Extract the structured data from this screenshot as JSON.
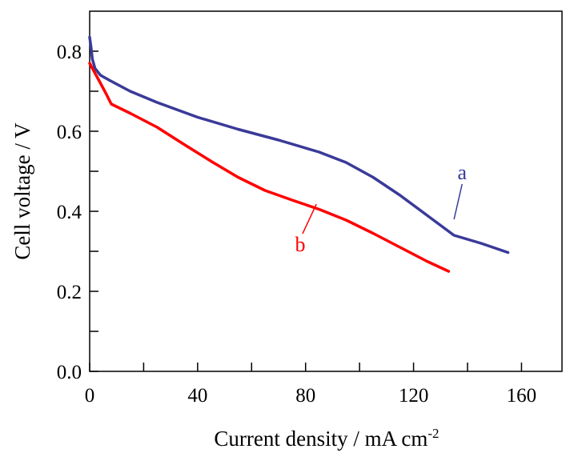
{
  "chart_data": {
    "type": "line",
    "title": "",
    "xlabel": "Current density / mA cm",
    "xlabel_superscript": "-2",
    "ylabel": "Cell voltage / V",
    "xlim": [
      0,
      175
    ],
    "ylim": [
      0,
      0.9
    ],
    "x_ticks": [
      0,
      40,
      80,
      120,
      160
    ],
    "x_tick_labels": [
      "0",
      "40",
      "80",
      "120",
      "160"
    ],
    "x_minor_ticks": [
      20,
      60,
      100,
      140
    ],
    "y_ticks": [
      0.0,
      0.2,
      0.4,
      0.6,
      0.8
    ],
    "y_tick_labels": [
      "0.0",
      "0.2",
      "0.4",
      "0.6",
      "0.8"
    ],
    "y_minor_ticks": [
      0.1,
      0.3,
      0.5,
      0.7
    ],
    "grid": false,
    "series": [
      {
        "name": "a",
        "color": "#3a3a99",
        "label_point": [
          138,
          0.48
        ],
        "leader_to": [
          135,
          0.38
        ],
        "x": [
          0,
          0.5,
          1,
          2,
          4,
          8,
          15,
          25,
          40,
          55,
          70,
          85,
          95,
          105,
          115,
          125,
          135,
          145,
          155
        ],
        "y": [
          0.835,
          0.81,
          0.78,
          0.757,
          0.74,
          0.725,
          0.7,
          0.672,
          0.635,
          0.605,
          0.578,
          0.548,
          0.522,
          0.485,
          0.44,
          0.39,
          0.34,
          0.32,
          0.297
        ]
      },
      {
        "name": "b",
        "color": "#ff0000",
        "label_point": [
          78,
          0.3
        ],
        "leader_to": [
          84,
          0.418
        ],
        "x": [
          0,
          2,
          4,
          6,
          8,
          15,
          25,
          35,
          45,
          55,
          65,
          75,
          85,
          95,
          105,
          115,
          125,
          133
        ],
        "y": [
          0.77,
          0.745,
          0.72,
          0.695,
          0.668,
          0.645,
          0.61,
          0.567,
          0.525,
          0.485,
          0.452,
          0.428,
          0.405,
          0.378,
          0.345,
          0.31,
          0.275,
          0.25
        ]
      }
    ]
  }
}
